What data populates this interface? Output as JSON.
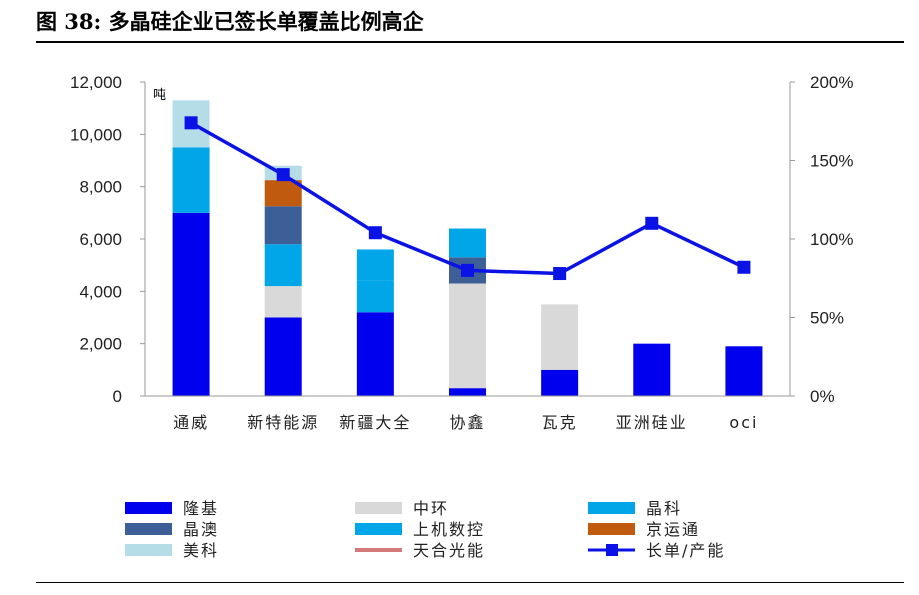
{
  "figure": {
    "title": "图 38: 多晶硅企业已签长单覆盖比例高企"
  },
  "chart_data": {
    "type": "bar",
    "stacked": true,
    "unit_label": "吨",
    "categories": [
      "通威",
      "新特能源",
      "新疆大全",
      "协鑫",
      "瓦克",
      "亚洲硅业",
      "oci"
    ],
    "ylim_left": [
      0,
      12000
    ],
    "yticks_left": [
      "12,000",
      "10,000",
      "8,000",
      "6,000",
      "4,000",
      "2,000",
      "0"
    ],
    "ylim_right": [
      0,
      200
    ],
    "yticks_right": [
      "200%",
      "150%",
      "100%",
      "50%",
      "0%"
    ],
    "series": [
      {
        "name": "隆基",
        "color": "#0000ee",
        "values": [
          7000,
          3000,
          3200,
          300,
          1000,
          2000,
          1900
        ]
      },
      {
        "name": "中环",
        "color": "#d9d9d9",
        "values": [
          0,
          1200,
          0,
          4000,
          2500,
          0,
          0
        ]
      },
      {
        "name": "晶科",
        "color": "#00a6e8",
        "values": [
          2500,
          1600,
          1200,
          0,
          0,
          0,
          0
        ]
      },
      {
        "name": "晶澳",
        "color": "#3b5f96",
        "values": [
          0,
          1450,
          0,
          1000,
          0,
          0,
          0
        ]
      },
      {
        "name": "上机数控",
        "color": "#00a6e8",
        "values": [
          0,
          0,
          1200,
          1100,
          0,
          0,
          0
        ]
      },
      {
        "name": "京运通",
        "color": "#c05a0e",
        "values": [
          0,
          1000,
          0,
          0,
          0,
          0,
          0
        ]
      },
      {
        "name": "美科",
        "color": "#b4dde8",
        "values": [
          1800,
          550,
          0,
          0,
          0,
          0,
          0
        ]
      },
      {
        "name": "天合光能",
        "color": "#d47a7a",
        "values": [
          0,
          0,
          0,
          0,
          0,
          0,
          0
        ]
      }
    ],
    "line": {
      "name": "长单/产能",
      "color": "#0a12e6",
      "axis": "right",
      "values": [
        174,
        141,
        104,
        80,
        78,
        110,
        82
      ]
    },
    "legend_placement": "bottom",
    "grid": false
  }
}
